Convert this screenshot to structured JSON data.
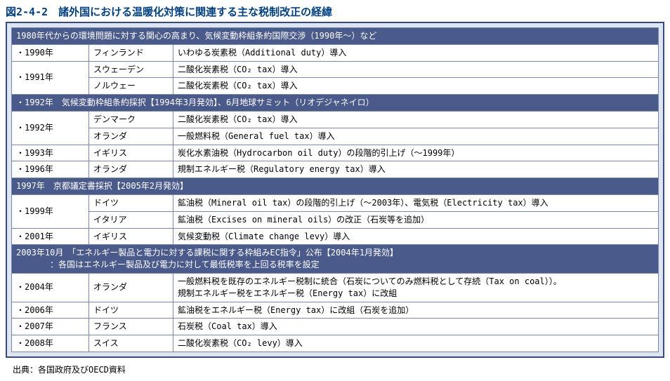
{
  "title": "図2-4-2　諸外国における温暖化対策に関連する主な税制改正の経緯",
  "source": "出典：各国政府及びOECD資料",
  "sections": [
    {
      "header": "1980年代からの環境問題に対する関心の高まり、気候変動枠組条約国際交渉（1990年～）など",
      "rows": [
        {
          "year": "・1990年",
          "country": "フィンランド",
          "desc": "いわゆる炭素税（Additional duty）導入",
          "yrowspan": 1
        },
        {
          "year": "・1991年",
          "country": "スウェーデン",
          "desc": "二酸化炭素税（CO₂ tax）導入",
          "yrowspan": 2
        },
        {
          "year": "",
          "country": "ノルウェー",
          "desc": "二酸化炭素税（CO₂ tax）導入",
          "yrowspan": 0
        }
      ]
    },
    {
      "header": "・1992年　気候変動枠組条約採択【1994年3月発効】、6月地球サミット（リオデジャネイロ）",
      "rows": [
        {
          "year": "・1992年",
          "country": "デンマーク",
          "desc": "二酸化炭素税（CO₂ tax）導入",
          "yrowspan": 2
        },
        {
          "year": "",
          "country": "オランダ",
          "desc": "一般燃料税（General fuel tax）導入",
          "yrowspan": 0
        },
        {
          "year": "・1993年",
          "country": "イギリス",
          "desc": "炭化水素油税（Hydrocarbon oil duty）の段階的引上げ（～1999年）",
          "yrowspan": 1
        },
        {
          "year": "・1996年",
          "country": "オランダ",
          "desc": "規制エネルギー税（Regulatory energy tax）導入",
          "yrowspan": 1
        }
      ]
    },
    {
      "header": "1997年　京都議定書採択【2005年2月発効】",
      "rows": [
        {
          "year": "・1999年",
          "country": "ドイツ",
          "desc": "鉱油税（Mineral oil tax）の段階的引上げ（～2003年）、電気税（Electricity tax）導入",
          "yrowspan": 2
        },
        {
          "year": "",
          "country": "イタリア",
          "desc": "鉱油税（Excises on mineral oils）の改正（石炭等を追加）",
          "yrowspan": 0
        },
        {
          "year": "・2001年",
          "country": "イギリス",
          "desc": "気候変動税（Climate change levy）導入",
          "yrowspan": 1
        }
      ]
    },
    {
      "header": "2003年10月　「エネルギー製品と電力に対する課税に関する枠組みEC指令」公布【2004年1月発効】\n　　　　：各国はエネルギー製品及び電力に対して最低税率を上回る税率を設定",
      "rows": [
        {
          "year": "・2004年",
          "country": "オランダ",
          "desc": "一般燃料税を既存のエネルギー税制に統合（石炭についてのみ燃料税として存続（Tax on coal））。\n規制エネルギー税をエネルギー税（Energy tax）に改組",
          "yrowspan": 1
        },
        {
          "year": "・2006年",
          "country": "ドイツ",
          "desc": "鉱油税をエネルギー税（Energy tax）に改組（石炭を追加）",
          "yrowspan": 1
        },
        {
          "year": "・2007年",
          "country": "フランス",
          "desc": "石炭税（Coal tax）導入",
          "yrowspan": 1
        },
        {
          "year": "・2008年",
          "country": "スイス",
          "desc": "二酸化炭素税（CO₂ levy）導入",
          "yrowspan": 1
        }
      ]
    }
  ]
}
